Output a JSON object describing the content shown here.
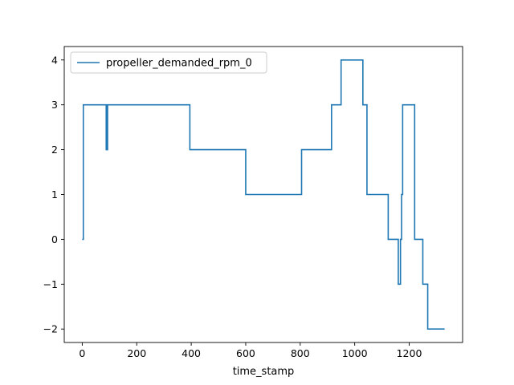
{
  "chart_data": {
    "type": "line",
    "title": "",
    "xlabel": "time_stamp",
    "ylabel": "",
    "xlim": [
      -66,
      1396
    ],
    "ylim": [
      -2.3,
      4.3
    ],
    "xticks": [
      0,
      200,
      400,
      600,
      800,
      1000,
      1200
    ],
    "yticks": [
      -2,
      -1,
      0,
      1,
      2,
      3,
      4
    ],
    "xtick_labels": [
      "0",
      "200",
      "400",
      "600",
      "800",
      "1000",
      "1200"
    ],
    "ytick_labels": [
      "−2",
      "−1",
      "0",
      "1",
      "2",
      "3",
      "4"
    ],
    "grid": false,
    "legend": {
      "position": "top-left",
      "entries": [
        "propeller_demanded_rpm_0"
      ]
    },
    "series": [
      {
        "name": "propeller_demanded_rpm_0",
        "color": "#1f77b4",
        "drawstyle": "steps-post",
        "x": [
          0,
          4,
          88,
          89,
          90,
          91,
          92,
          93,
          94,
          395,
          600,
          805,
          915,
          950,
          1030,
          1040,
          1045,
          1123,
          1160,
          1162,
          1168,
          1172,
          1176,
          1180,
          1220,
          1225,
          1250,
          1268,
          1330
        ],
        "y": [
          0,
          3,
          2,
          3,
          2,
          3,
          2,
          3,
          3,
          2,
          1,
          2,
          3,
          4,
          3,
          3,
          1,
          0,
          -1,
          -1,
          0,
          1,
          3,
          3,
          0,
          0,
          -1,
          -2,
          -2
        ]
      }
    ]
  }
}
